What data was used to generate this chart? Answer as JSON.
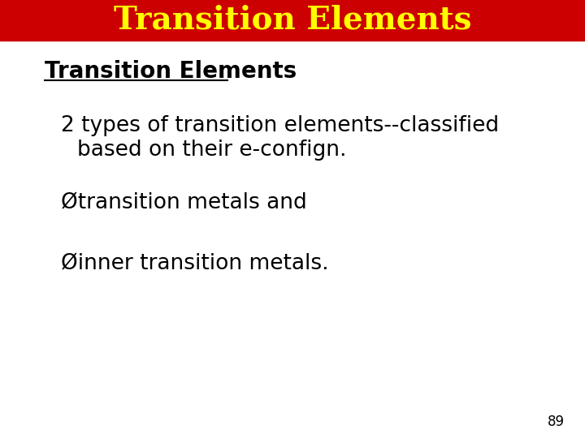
{
  "title": "Transition Elements",
  "title_bg_color": "#cc0000",
  "title_text_color": "#ffff00",
  "title_fontsize": 28,
  "body_bg_color": "#ffffff",
  "heading_text": "Transition Elements",
  "heading_fontsize": 20,
  "heading_color": "#000000",
  "line1": "2 types of transition elements--classified",
  "line2": "based on their e-confign.",
  "bullet1": "Ütransition metals and",
  "bullet2": "Üinner transition metals.",
  "body_fontsize": 19,
  "page_number": "89",
  "page_num_fontsize": 12
}
